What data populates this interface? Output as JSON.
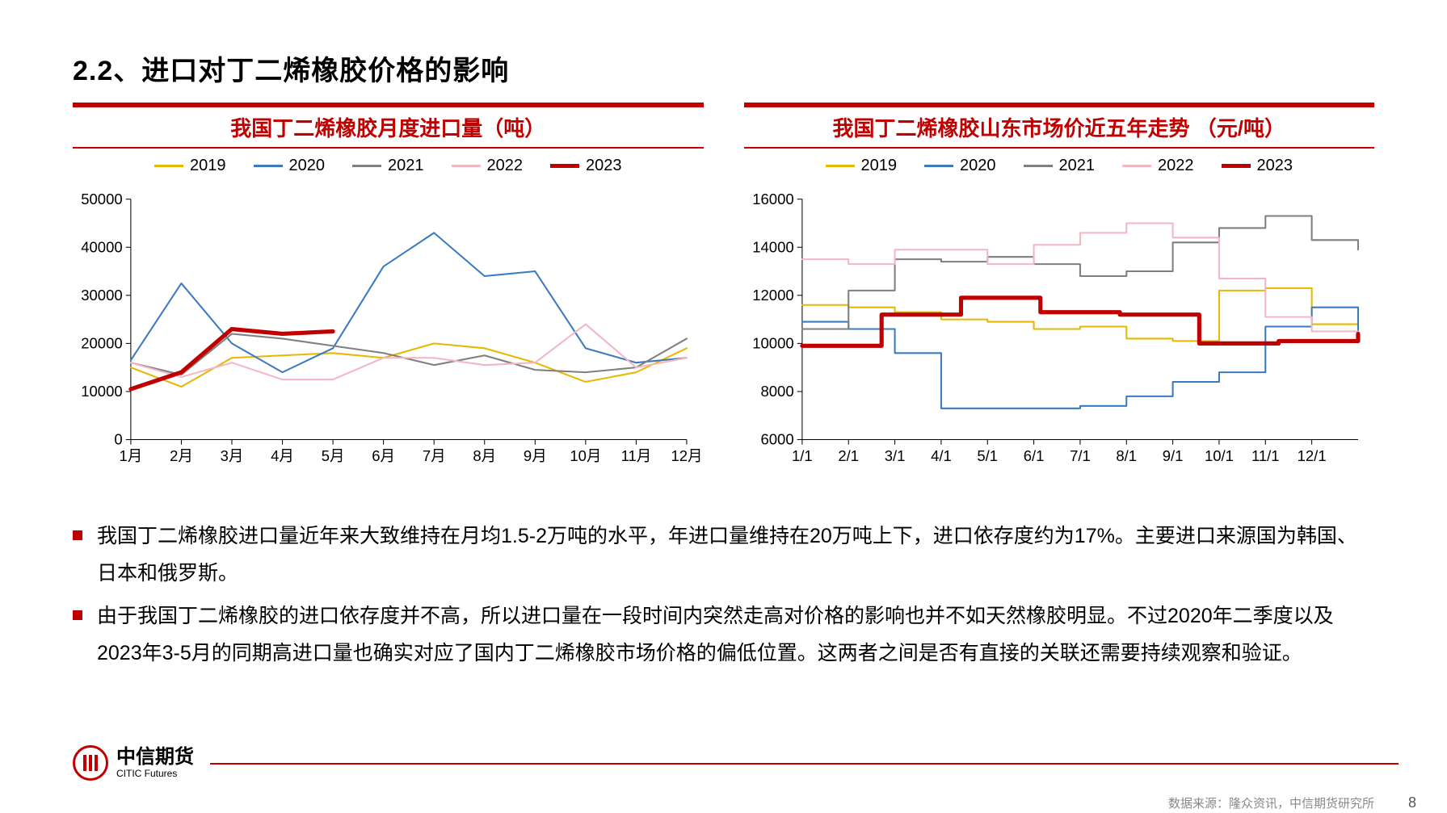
{
  "heading": "2.2、进口对丁二烯橡胶价格的影响",
  "chart1": {
    "title": "我国丁二烯橡胶月度进口量（吨）",
    "type": "line",
    "xlabels": [
      "1月",
      "2月",
      "3月",
      "4月",
      "5月",
      "6月",
      "7月",
      "8月",
      "9月",
      "10月",
      "11月",
      "12月"
    ],
    "ylim": [
      0,
      50000
    ],
    "yticks": [
      0,
      10000,
      20000,
      30000,
      40000,
      50000
    ],
    "series": {
      "s2019": {
        "label": "2019",
        "color": "#e6b800",
        "width": 2,
        "values": [
          15000,
          11000,
          17000,
          17500,
          18000,
          17000,
          20000,
          19000,
          16000,
          12000,
          14000,
          19000
        ]
      },
      "s2020": {
        "label": "2020",
        "color": "#3a7bbf",
        "width": 2,
        "values": [
          16500,
          32500,
          20000,
          14000,
          19000,
          36000,
          43000,
          34000,
          35000,
          19000,
          16000,
          17000
        ]
      },
      "s2021": {
        "label": "2021",
        "color": "#7f7f7f",
        "width": 2,
        "values": [
          16000,
          13500,
          22000,
          21000,
          19500,
          18000,
          15500,
          17500,
          14500,
          14000,
          15000,
          21000
        ]
      },
      "s2022": {
        "label": "2022",
        "color": "#f4b6c2",
        "width": 2,
        "values": [
          16000,
          13000,
          16000,
          12500,
          12500,
          17000,
          17000,
          15500,
          16000,
          24000,
          15000,
          17000
        ]
      },
      "s2023": {
        "label": "2023",
        "color": "#c00000",
        "width": 5,
        "values": [
          10500,
          14000,
          23000,
          22000,
          22500
        ]
      }
    },
    "background": "#ffffff",
    "axis_color": "#000000",
    "label_fontsize": 18
  },
  "chart2": {
    "title": "我国丁二烯橡胶山东市场价近五年走势 （元/吨）",
    "type": "step-line",
    "xlabels": [
      "1/1",
      "2/1",
      "3/1",
      "4/1",
      "5/1",
      "6/1",
      "7/1",
      "8/1",
      "9/1",
      "10/1",
      "11/1",
      "12/1"
    ],
    "ylim": [
      6000,
      16000
    ],
    "yticks": [
      6000,
      8000,
      10000,
      12000,
      14000,
      16000
    ],
    "series": {
      "s2019": {
        "label": "2019",
        "color": "#e6b800",
        "width": 2,
        "values": [
          11600,
          11500,
          11300,
          11000,
          10900,
          10600,
          10700,
          10200,
          10100,
          12200,
          12300,
          10800,
          10700
        ]
      },
      "s2020": {
        "label": "2020",
        "color": "#3a7bbf",
        "width": 2,
        "values": [
          10900,
          10600,
          9600,
          7300,
          7300,
          7300,
          7400,
          7800,
          8400,
          8800,
          10700,
          11500,
          10200
        ]
      },
      "s2021": {
        "label": "2021",
        "color": "#7f7f7f",
        "width": 2,
        "values": [
          10600,
          12200,
          13500,
          13400,
          13600,
          13300,
          12800,
          13000,
          14200,
          14800,
          15300,
          14300,
          13900
        ]
      },
      "s2022": {
        "label": "2022",
        "color": "#f4b6c2",
        "width": 2,
        "values": [
          13500,
          13300,
          13900,
          13900,
          13300,
          14100,
          14600,
          15000,
          14400,
          12700,
          11100,
          10500,
          10500
        ]
      },
      "s2023": {
        "label": "2023",
        "color": "#c00000",
        "width": 5,
        "values": [
          9900,
          11200,
          11900,
          11300,
          11200,
          10000,
          10100,
          10400
        ]
      }
    },
    "background": "#ffffff",
    "axis_color": "#000000",
    "label_fontsize": 18
  },
  "bullets": [
    "我国丁二烯橡胶进口量近年来大致维持在月均1.5-2万吨的水平，年进口量维持在20万吨上下，进口依存度约为17%。主要进口来源国为韩国、日本和俄罗斯。",
    "由于我国丁二烯橡胶的进口依存度并不高，所以进口量在一段时间内突然走高对价格的影响也并不如天然橡胶明显。不过2020年二季度以及2023年3-5月的同期高进口量也确实对应了国内丁二烯橡胶市场价格的偏低位置。这两者之间是否有直接的关联还需要持续观察和验证。"
  ],
  "footer": {
    "logo_cn": "中信期货",
    "logo_en": "CITIC Futures",
    "source": "数据来源：隆众资讯，中信期货研究所",
    "page": "8"
  },
  "colors": {
    "brand_red": "#c00000"
  }
}
